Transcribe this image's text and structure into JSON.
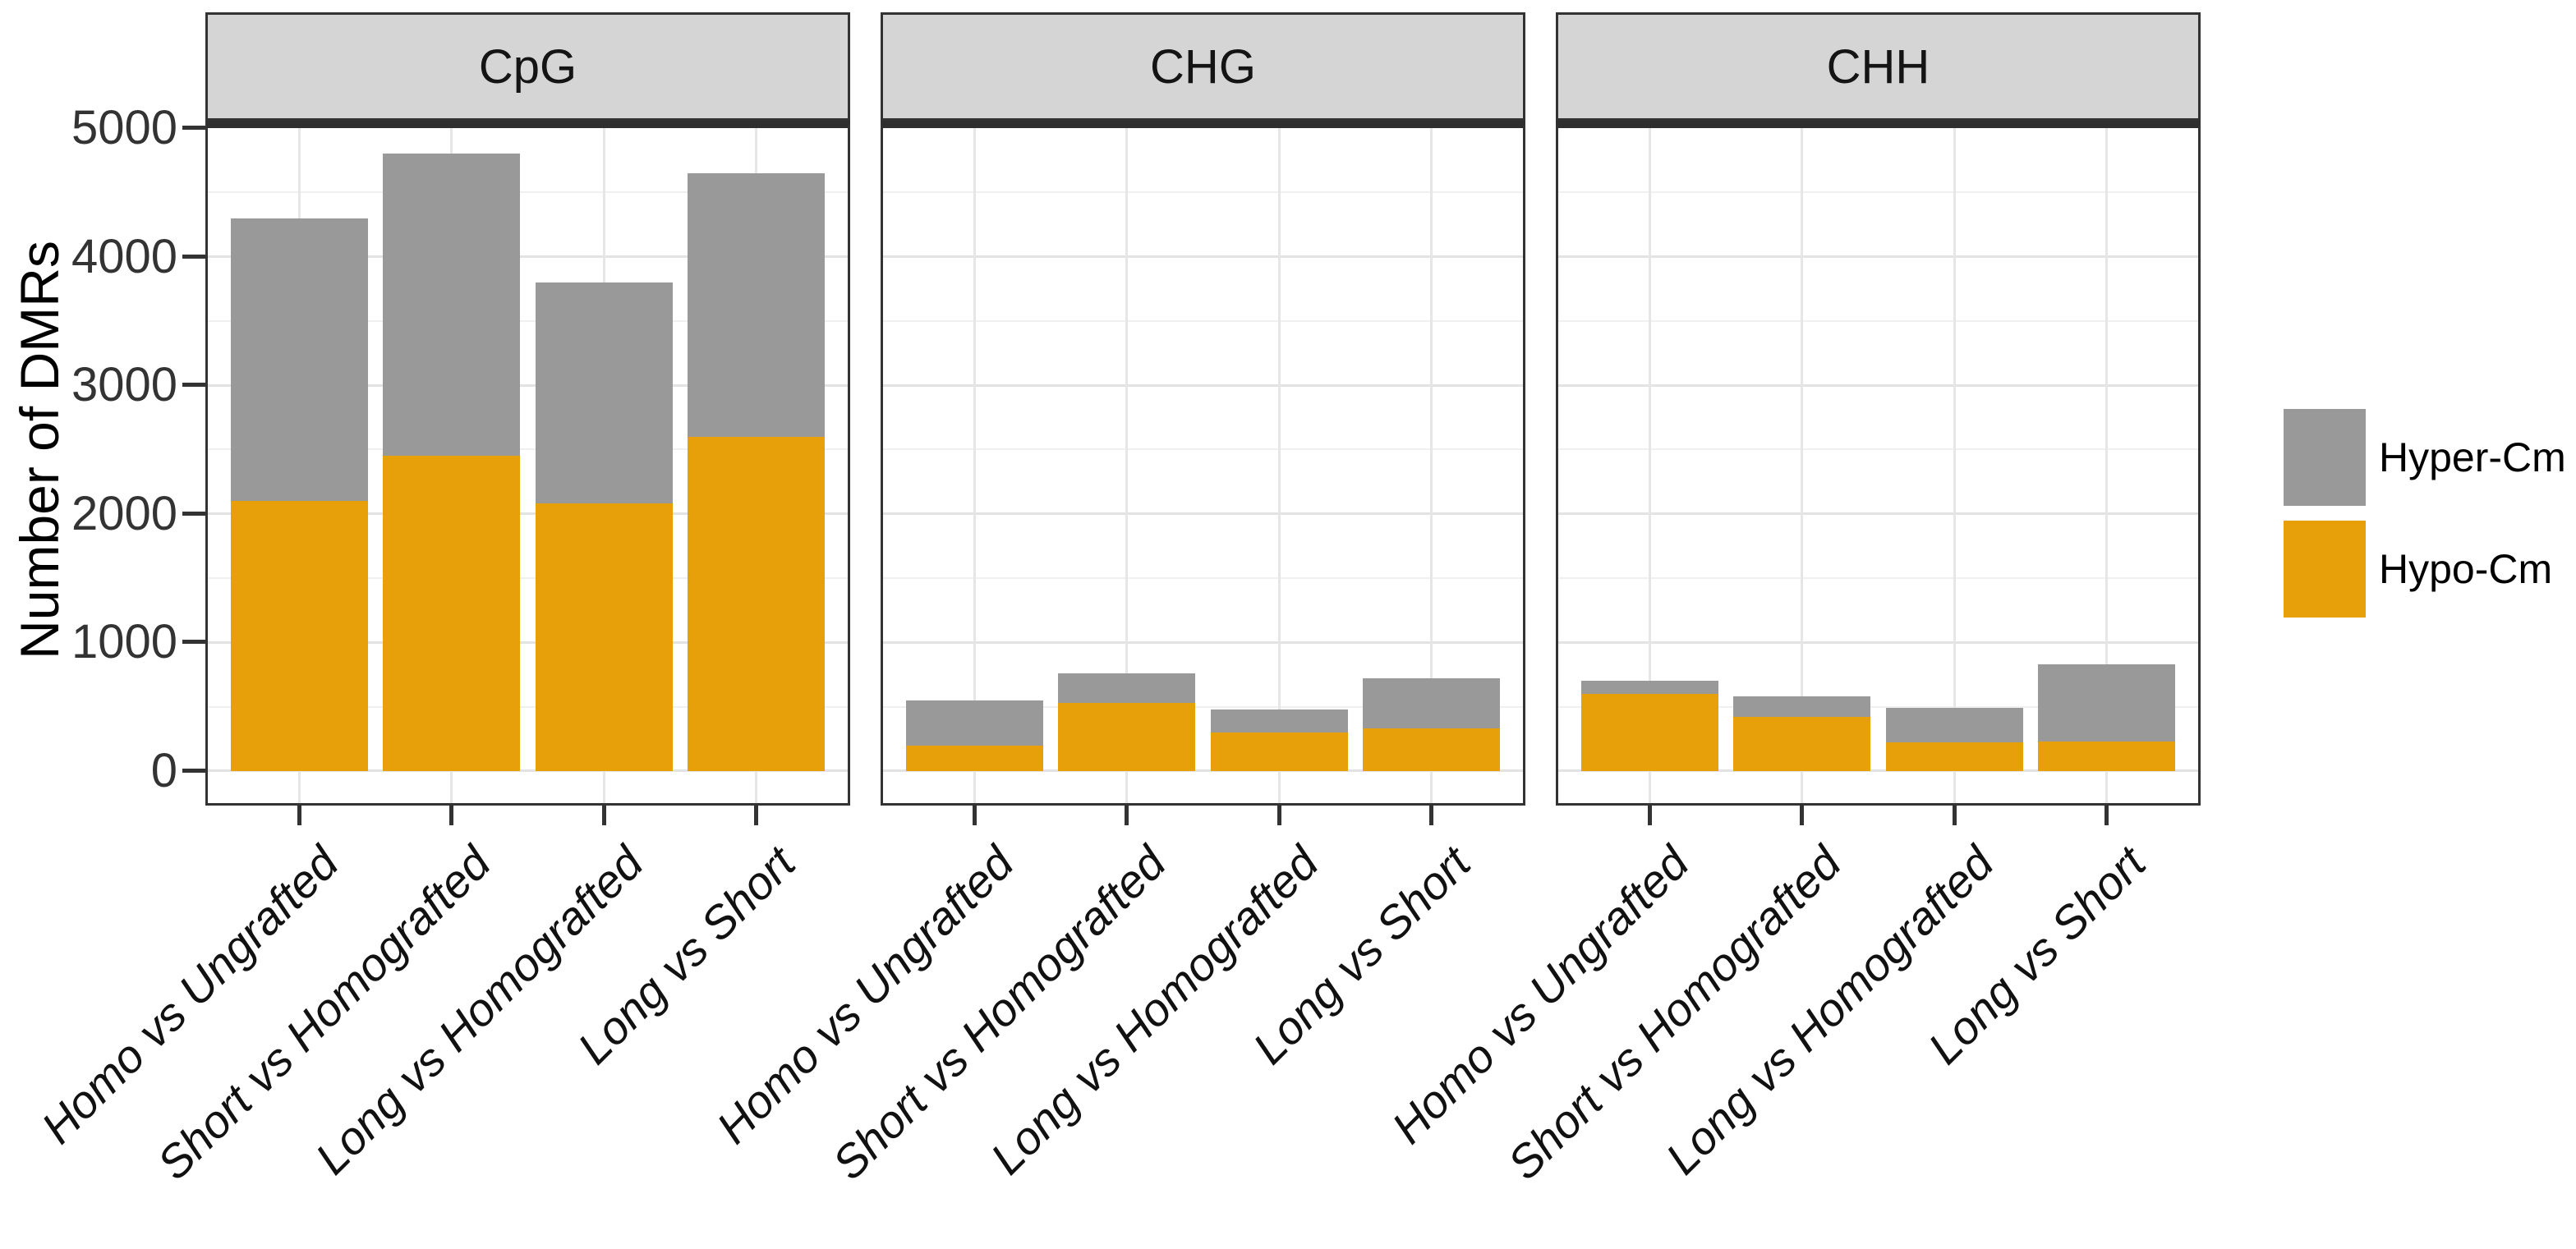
{
  "chart_data": {
    "type": "bar",
    "stacked": true,
    "title": "",
    "ylabel": "Number of DMRs",
    "xlabel": "",
    "ylim": [
      0,
      5000
    ],
    "yticks": [
      0,
      1000,
      2000,
      3000,
      4000,
      5000
    ],
    "grid": true,
    "facets": [
      "CpG",
      "CHG",
      "CHH"
    ],
    "categories": [
      "Homo vs Ungrafted",
      "Short vs Homografted",
      "Long vs Homografted",
      "Long vs Short"
    ],
    "legend_position": "right",
    "legend": [
      {
        "label": "Hyper-Cm",
        "series": "hyper",
        "color": "#999999"
      },
      {
        "label": "Hypo-Cm",
        "series": "hypo",
        "color": "#E8A00A"
      }
    ],
    "series_by_facet": [
      {
        "facet": "CpG",
        "hypo": [
          2100,
          2450,
          2080,
          2600
        ],
        "hyper": [
          2200,
          2350,
          1720,
          2050
        ]
      },
      {
        "facet": "CHG",
        "hypo": [
          200,
          530,
          300,
          330
        ],
        "hyper": [
          350,
          230,
          180,
          390
        ]
      },
      {
        "facet": "CHH",
        "hypo": [
          600,
          420,
          220,
          230
        ],
        "hyper": [
          100,
          160,
          270,
          600
        ]
      }
    ],
    "colors": {
      "hyper": "#999999",
      "hypo": "#E8A00A",
      "strip_bg": "#D5D5D5",
      "panel_border": "#333333",
      "grid_major": "#E3E3E3",
      "grid_minor": "#F0F0F0"
    }
  }
}
